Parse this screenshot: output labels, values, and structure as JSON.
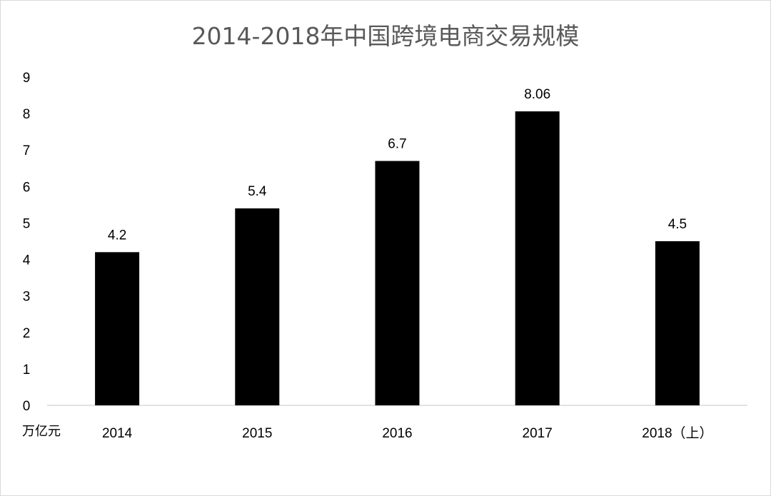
{
  "chart_data": {
    "type": "bar",
    "title": "2014-2018年中国跨境电商交易规模",
    "unit_label": "万亿元",
    "categories": [
      "2014",
      "2015",
      "2016",
      "2017",
      "2018（上）"
    ],
    "values": [
      4.2,
      5.4,
      6.7,
      8.06,
      4.5
    ],
    "data_labels": [
      "4.2",
      "5.4",
      "6.7",
      "8.06",
      "4.5"
    ],
    "ylim": [
      0,
      9
    ],
    "yticks": [
      "0",
      "1",
      "2",
      "3",
      "4",
      "5",
      "6",
      "7",
      "8",
      "9"
    ],
    "grid": false,
    "bar_color": "#000000",
    "axis_color": "#d9d9d9",
    "title_color": "#595959"
  }
}
